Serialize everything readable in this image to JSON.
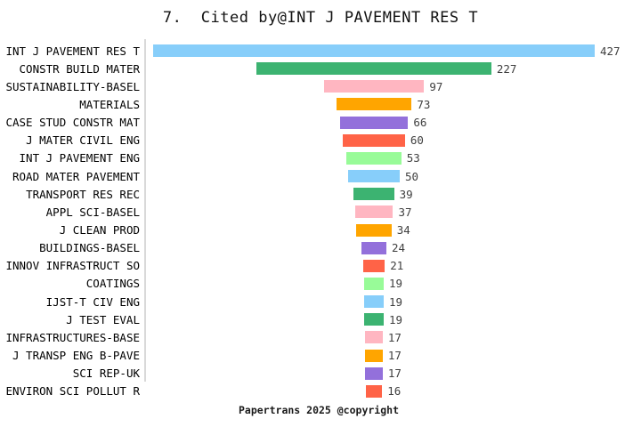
{
  "page": {
    "title": "7.  Cited by@INT J PAVEMENT RES T",
    "footer": "Papertrans 2025 @copyright"
  },
  "chart_data": {
    "type": "bar",
    "subtype": "horizontal-centered-funnel",
    "title": "7.  Cited by@INT J PAVEMENT RES T",
    "xlabel": "",
    "ylabel": "",
    "grid": false,
    "legend": null,
    "value_labels_position": "right-of-bar",
    "max_value": 427,
    "categories": [
      "INT J PAVEMENT RES T",
      "CONSTR BUILD MATER",
      "SUSTAINABILITY-BASEL",
      "MATERIALS",
      "CASE STUD CONSTR MAT",
      "J MATER CIVIL ENG",
      "INT J PAVEMENT ENG",
      "ROAD MATER PAVEMENT",
      "TRANSPORT RES REC",
      "APPL SCI-BASEL",
      "J CLEAN PROD",
      "BUILDINGS-BASEL",
      "INNOV INFRASTRUCT SO",
      "COATINGS",
      "IJST-T CIV ENG",
      "J TEST EVAL",
      "INFRASTRUCTURES-BASE",
      "J TRANSP ENG B-PAVE",
      "SCI REP-UK",
      "ENVIRON SCI POLLUT R"
    ],
    "values": [
      427,
      227,
      97,
      73,
      66,
      60,
      53,
      50,
      39,
      37,
      34,
      24,
      21,
      19,
      19,
      19,
      17,
      17,
      17,
      16
    ],
    "bar_colors": [
      "#87CEFA",
      "#3CB371",
      "#FFB6C1",
      "#FFA500",
      "#9370DB",
      "#FF6347",
      "#98FB98",
      "#87CEFA",
      "#3CB371",
      "#FFB6C1",
      "#FFA500",
      "#9370DB",
      "#FF6347",
      "#98FB98",
      "#87CEFA",
      "#3CB371",
      "#FFB6C1",
      "#FFA500",
      "#9370DB",
      "#FF6347"
    ],
    "axis_line_color": "#d9d9d9",
    "label_color": "#000000",
    "value_color": "#404040",
    "background": "#ffffff"
  }
}
